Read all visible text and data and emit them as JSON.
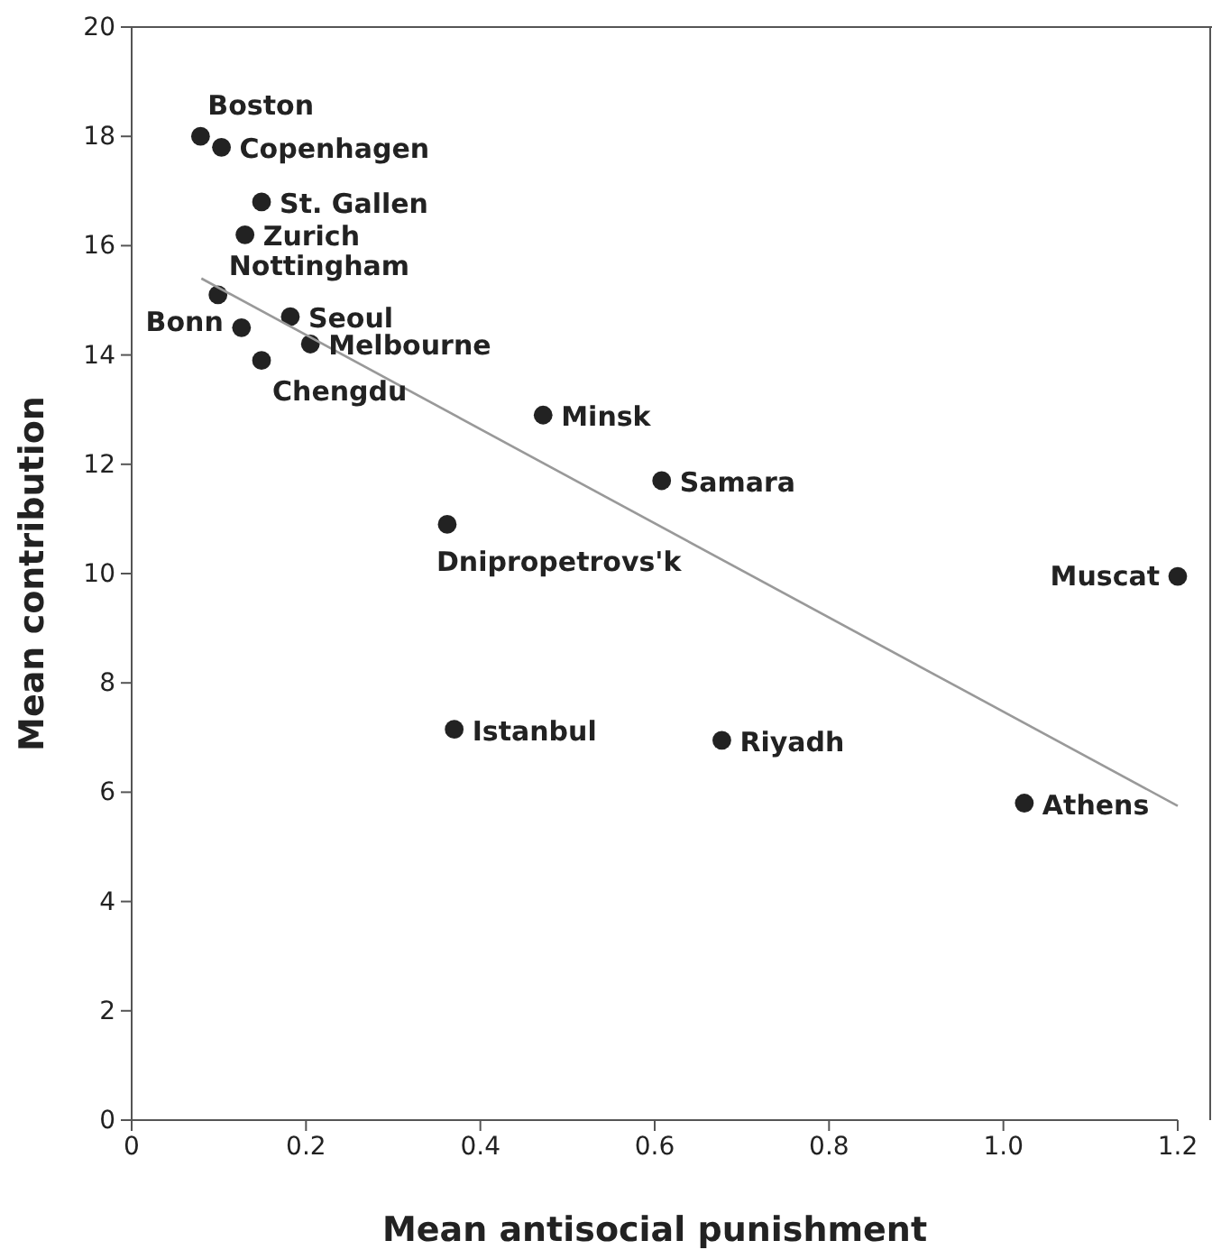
{
  "chart_data": {
    "type": "scatter",
    "xlabel": "Mean antisocial punishment",
    "ylabel": "Mean contribution",
    "xlim": [
      0,
      1.2
    ],
    "ylim": [
      0,
      20
    ],
    "xticks": [
      0,
      0.2,
      0.4,
      0.6,
      0.8,
      {
        "value": 1.0,
        "label": "1.0"
      },
      1.2
    ],
    "yticks": [
      0,
      2,
      4,
      6,
      8,
      10,
      12,
      14,
      16,
      18,
      20
    ],
    "grid": false,
    "series": [
      {
        "marker": "circle",
        "color": "#222222",
        "x": [
          0.079,
          0.103,
          0.149,
          0.13,
          0.099,
          0.126,
          0.182,
          0.205,
          0.149,
          0.472,
          0.608,
          0.362,
          1.2,
          0.37,
          0.677,
          1.024
        ],
        "values": [
          18.0,
          17.8,
          16.8,
          16.2,
          15.1,
          14.5,
          14.7,
          14.2,
          13.9,
          12.9,
          11.7,
          10.9,
          9.95,
          7.15,
          6.95,
          5.8
        ]
      },
      {
        "type": "line",
        "color": "#999999",
        "x": [
          0.08,
          1.2
        ],
        "values": [
          15.4,
          5.75
        ]
      }
    ],
    "annotations": [
      {
        "text": "Boston",
        "x": 0.079,
        "y": 18.0
      },
      {
        "text": "Copenhagen",
        "x": 0.103,
        "y": 17.8
      },
      {
        "text": "St. Gallen",
        "x": 0.149,
        "y": 16.8
      },
      {
        "text": "Zurich",
        "x": 0.13,
        "y": 16.2
      },
      {
        "text": "Nottingham",
        "x": 0.099,
        "y": 15.1
      },
      {
        "text": "Bonn",
        "x": 0.126,
        "y": 14.5
      },
      {
        "text": "Seoul",
        "x": 0.182,
        "y": 14.7
      },
      {
        "text": "Melbourne",
        "x": 0.205,
        "y": 14.2
      },
      {
        "text": "Chengdu",
        "x": 0.149,
        "y": 13.9
      },
      {
        "text": "Minsk",
        "x": 0.472,
        "y": 12.9
      },
      {
        "text": "Samara",
        "x": 0.608,
        "y": 11.7
      },
      {
        "text": "Dnipropetrovs'k",
        "x": 0.362,
        "y": 10.9
      },
      {
        "text": "Muscat",
        "x": 1.2,
        "y": 9.95
      },
      {
        "text": "Istanbul",
        "x": 0.37,
        "y": 7.15
      },
      {
        "text": "Riyadh",
        "x": 0.677,
        "y": 6.95
      },
      {
        "text": "Athens",
        "x": 1.024,
        "y": 5.8
      }
    ]
  }
}
